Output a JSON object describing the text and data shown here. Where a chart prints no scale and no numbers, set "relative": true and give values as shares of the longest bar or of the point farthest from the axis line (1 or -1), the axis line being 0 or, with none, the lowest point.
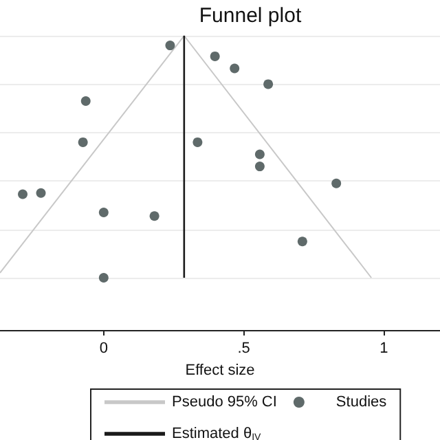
{
  "chart_data": {
    "type": "scatter",
    "title": "Funnel plot",
    "xlabel": "Effect size",
    "relative": true,
    "xlim": [
      -0.37,
      1.2
    ],
    "xticks": [
      0,
      {
        "value": 0.5,
        "label": ".5"
      },
      1
    ],
    "grid": "y",
    "legend": "bottom",
    "series": [
      {
        "name": "Pseudo 95% CI",
        "type": "line",
        "color": "#c8c8c8",
        "marker": "none",
        "x": [
          -0.37,
          0.287,
          0.955
        ],
        "values": [
          0.02,
          1,
          0
        ]
      },
      {
        "name": "Studies",
        "color": "#5f6a6a",
        "marker": "circle",
        "x": [
          0.237,
          0.397,
          0.467,
          0.587,
          -0.064,
          -0.074,
          0.335,
          0.557,
          0.557,
          -0.289,
          -0.224,
          0.83,
          0.0,
          0.181,
          0.709,
          0.0
        ],
        "values": [
          0.96,
          0.915,
          0.865,
          0.8,
          0.73,
          0.56,
          0.56,
          0.51,
          0.46,
          0.345,
          0.35,
          0.39,
          0.27,
          0.255,
          0.15,
          0.0
        ]
      },
      {
        "name": "Estimated θ$_{IV}$",
        "type": "line",
        "color": "#1a1a1a",
        "marker": "none",
        "x": [
          0.287,
          0.287
        ],
        "values": [
          0,
          1
        ]
      }
    ]
  }
}
